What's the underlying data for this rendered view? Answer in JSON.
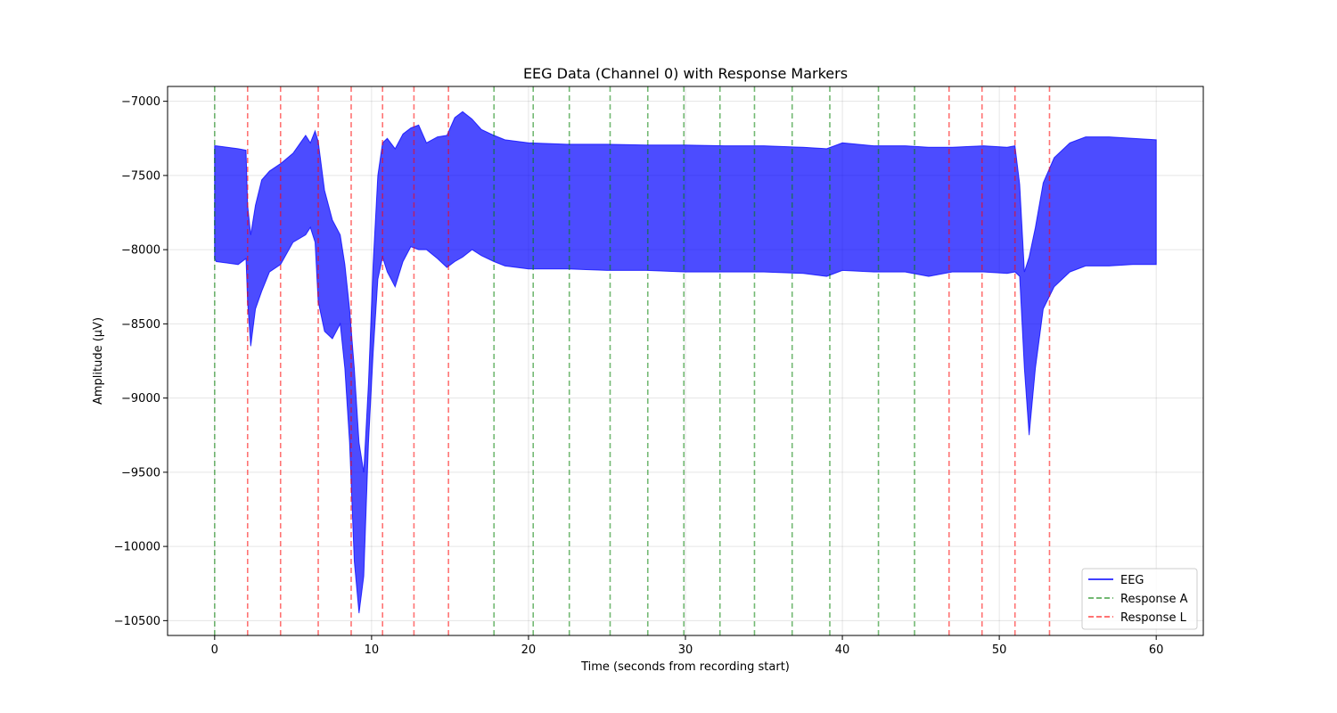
{
  "chart_data": {
    "type": "line",
    "title": "EEG Data (Channel 0) with Response Markers",
    "xlabel": "Time (seconds from recording start)",
    "ylabel": "Amplitude (µV)",
    "xlim": [
      -3,
      63
    ],
    "ylim": [
      -10600,
      -6900
    ],
    "xticks": [
      0,
      10,
      20,
      30,
      40,
      50,
      60
    ],
    "yticks": [
      -10500,
      -10000,
      -9500,
      -9000,
      -8500,
      -8000,
      -7500,
      -7000
    ],
    "grid": true,
    "legend_position": "lower-right",
    "legend": [
      {
        "label": "EEG",
        "color": "#0000ff",
        "style": "solid"
      },
      {
        "label": "Response A",
        "color": "#008000",
        "style": "dashed"
      },
      {
        "label": "Response L",
        "color": "#ff0000",
        "style": "dashed"
      }
    ],
    "series": [
      {
        "name": "EEG",
        "color": "#0000ff",
        "fill_opacity": 0.7,
        "x": [
          0,
          0.1,
          1.5,
          2.0,
          2.1,
          2.3,
          2.6,
          3.0,
          3.5,
          4.2,
          5.0,
          5.8,
          6.1,
          6.4,
          6.6,
          7.0,
          7.5,
          8.0,
          8.3,
          8.6,
          8.9,
          9.2,
          9.5,
          9.8,
          10.1,
          10.4,
          10.7,
          11.0,
          11.5,
          12.0,
          12.5,
          13.0,
          13.5,
          14.2,
          14.8,
          15.3,
          15.8,
          16.4,
          17.0,
          17.8,
          18.5,
          20.0,
          22.5,
          25.0,
          27.5,
          30.0,
          32.5,
          35.0,
          37.5,
          39.0,
          40.0,
          42.0,
          44.0,
          45.5,
          47.0,
          49.0,
          50.5,
          51.0,
          51.3,
          51.6,
          51.9,
          52.3,
          52.8,
          53.5,
          54.5,
          55.5,
          57.0,
          58.5,
          60.0
        ],
        "upper": [
          -7300,
          -7300,
          -7320,
          -7330,
          -7700,
          -7900,
          -7700,
          -7530,
          -7470,
          -7420,
          -7350,
          -7230,
          -7280,
          -7200,
          -7270,
          -7600,
          -7800,
          -7900,
          -8100,
          -8400,
          -8800,
          -9300,
          -9500,
          -8900,
          -8100,
          -7500,
          -7280,
          -7250,
          -7320,
          -7220,
          -7180,
          -7160,
          -7280,
          -7240,
          -7230,
          -7110,
          -7070,
          -7120,
          -7190,
          -7230,
          -7260,
          -7280,
          -7290,
          -7290,
          -7295,
          -7295,
          -7300,
          -7300,
          -7310,
          -7320,
          -7280,
          -7300,
          -7300,
          -7310,
          -7310,
          -7300,
          -7310,
          -7300,
          -7560,
          -8150,
          -8050,
          -7850,
          -7550,
          -7380,
          -7280,
          -7240,
          -7240,
          -7250,
          -7260
        ],
        "lower": [
          -8060,
          -8080,
          -8100,
          -8060,
          -8350,
          -8650,
          -8400,
          -8280,
          -8150,
          -8100,
          -7950,
          -7900,
          -7850,
          -7950,
          -8350,
          -8550,
          -8600,
          -8500,
          -8800,
          -9300,
          -10100,
          -10450,
          -10200,
          -9300,
          -8700,
          -8200,
          -8050,
          -8150,
          -8250,
          -8080,
          -7980,
          -8000,
          -8000,
          -8060,
          -8120,
          -8080,
          -8050,
          -8000,
          -8040,
          -8080,
          -8110,
          -8130,
          -8130,
          -8140,
          -8140,
          -8150,
          -8150,
          -8150,
          -8160,
          -8180,
          -8140,
          -8150,
          -8150,
          -8180,
          -8150,
          -8150,
          -8160,
          -8150,
          -8180,
          -8800,
          -9250,
          -8800,
          -8400,
          -8250,
          -8150,
          -8110,
          -8110,
          -8100,
          -8100
        ]
      }
    ],
    "markers": {
      "response_a": [
        0,
        17.8,
        20.3,
        22.6,
        25.2,
        27.6,
        29.9,
        32.2,
        34.4,
        36.8,
        39.2,
        42.3,
        44.6
      ],
      "response_l": [
        2.1,
        4.2,
        6.6,
        8.7,
        10.7,
        12.7,
        14.9,
        46.8,
        48.9,
        51.0,
        53.2
      ]
    }
  }
}
